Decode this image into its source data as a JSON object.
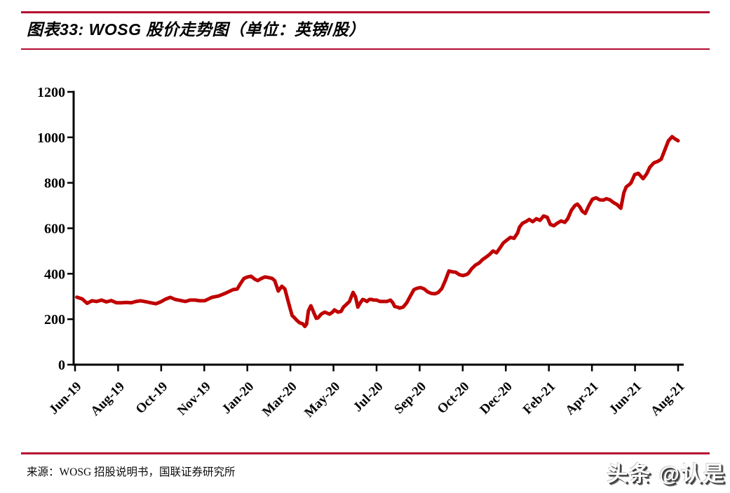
{
  "header": {
    "title": "图表33: WOSG 股价走势图（单位：英镑/股）"
  },
  "footer": {
    "source": "来源：WOSG 招股说明书，国联证券研究所",
    "watermark": "头条 @认是"
  },
  "colors": {
    "rule": "#B50B30",
    "line": "#C00000",
    "axis": "#000000",
    "background": "#FFFFFF"
  },
  "chart_data": {
    "type": "line",
    "title": "WOSG 股价走势图",
    "unit": "英镑/股",
    "xlabel": "",
    "ylabel": "",
    "ylim": [
      0,
      1200
    ],
    "y_ticks": [
      0,
      200,
      400,
      600,
      800,
      1000,
      1200
    ],
    "x_tick_labels": [
      "Jun-19",
      "Aug-19",
      "Oct-19",
      "Nov-19",
      "Jan-20",
      "Mar-20",
      "May-20",
      "Jul-20",
      "Sep-20",
      "Oct-20",
      "Dec-20",
      "Feb-21",
      "Apr-21",
      "Jun-21",
      "Aug-21"
    ],
    "grid": false,
    "legend": "none",
    "point_format": "[fraction_of_x_axis_from_Jun19_to_Aug21, price_in_pence]",
    "series": [
      {
        "name": "WOSG 股价",
        "color": "#C00000",
        "points": [
          [
            0.003,
            297
          ],
          [
            0.012,
            289
          ],
          [
            0.02,
            270
          ],
          [
            0.028,
            281
          ],
          [
            0.036,
            278
          ],
          [
            0.044,
            284
          ],
          [
            0.052,
            276
          ],
          [
            0.06,
            282
          ],
          [
            0.069,
            272
          ],
          [
            0.077,
            272
          ],
          [
            0.085,
            274
          ],
          [
            0.093,
            272
          ],
          [
            0.101,
            278
          ],
          [
            0.109,
            281
          ],
          [
            0.117,
            277
          ],
          [
            0.126,
            272
          ],
          [
            0.134,
            268
          ],
          [
            0.142,
            276
          ],
          [
            0.15,
            288
          ],
          [
            0.158,
            296
          ],
          [
            0.166,
            287
          ],
          [
            0.174,
            283
          ],
          [
            0.183,
            278
          ],
          [
            0.191,
            284
          ],
          [
            0.199,
            284
          ],
          [
            0.207,
            281
          ],
          [
            0.215,
            281
          ],
          [
            0.227,
            296
          ],
          [
            0.238,
            302
          ],
          [
            0.25,
            315
          ],
          [
            0.262,
            330
          ],
          [
            0.269,
            333
          ],
          [
            0.274,
            355
          ],
          [
            0.28,
            379
          ],
          [
            0.286,
            386
          ],
          [
            0.292,
            389
          ],
          [
            0.298,
            376
          ],
          [
            0.303,
            370
          ],
          [
            0.309,
            379
          ],
          [
            0.315,
            386
          ],
          [
            0.321,
            383
          ],
          [
            0.327,
            379
          ],
          [
            0.331,
            370
          ],
          [
            0.337,
            324
          ],
          [
            0.343,
            345
          ],
          [
            0.348,
            333
          ],
          [
            0.352,
            293
          ],
          [
            0.356,
            253
          ],
          [
            0.36,
            216
          ],
          [
            0.364,
            206
          ],
          [
            0.367,
            197
          ],
          [
            0.372,
            185
          ],
          [
            0.378,
            179
          ],
          [
            0.381,
            168
          ],
          [
            0.384,
            179
          ],
          [
            0.387,
            237
          ],
          [
            0.391,
            259
          ],
          [
            0.393,
            247
          ],
          [
            0.397,
            222
          ],
          [
            0.4,
            204
          ],
          [
            0.403,
            206
          ],
          [
            0.408,
            222
          ],
          [
            0.414,
            231
          ],
          [
            0.417,
            228
          ],
          [
            0.422,
            222
          ],
          [
            0.427,
            231
          ],
          [
            0.43,
            241
          ],
          [
            0.436,
            231
          ],
          [
            0.441,
            234
          ],
          [
            0.445,
            253
          ],
          [
            0.45,
            265
          ],
          [
            0.455,
            278
          ],
          [
            0.458,
            298
          ],
          [
            0.461,
            318
          ],
          [
            0.465,
            299
          ],
          [
            0.469,
            253
          ],
          [
            0.472,
            268
          ],
          [
            0.477,
            287
          ],
          [
            0.48,
            284
          ],
          [
            0.484,
            278
          ],
          [
            0.488,
            287
          ],
          [
            0.492,
            287
          ],
          [
            0.495,
            284
          ],
          [
            0.5,
            284
          ],
          [
            0.506,
            278
          ],
          [
            0.512,
            278
          ],
          [
            0.517,
            278
          ],
          [
            0.523,
            284
          ],
          [
            0.527,
            272
          ],
          [
            0.53,
            256
          ],
          [
            0.535,
            253
          ],
          [
            0.538,
            249
          ],
          [
            0.544,
            253
          ],
          [
            0.55,
            272
          ],
          [
            0.556,
            302
          ],
          [
            0.562,
            330
          ],
          [
            0.567,
            336
          ],
          [
            0.573,
            339
          ],
          [
            0.579,
            333
          ],
          [
            0.585,
            320
          ],
          [
            0.591,
            313
          ],
          [
            0.597,
            312
          ],
          [
            0.602,
            317
          ],
          [
            0.608,
            334
          ],
          [
            0.614,
            370
          ],
          [
            0.62,
            412
          ],
          [
            0.626,
            408
          ],
          [
            0.631,
            407
          ],
          [
            0.637,
            396
          ],
          [
            0.643,
            392
          ],
          [
            0.649,
            396
          ],
          [
            0.652,
            401
          ],
          [
            0.658,
            423
          ],
          [
            0.664,
            438
          ],
          [
            0.67,
            447
          ],
          [
            0.676,
            463
          ],
          [
            0.681,
            472
          ],
          [
            0.687,
            484
          ],
          [
            0.693,
            500
          ],
          [
            0.699,
            492
          ],
          [
            0.705,
            515
          ],
          [
            0.71,
            535
          ],
          [
            0.716,
            548
          ],
          [
            0.722,
            560
          ],
          [
            0.728,
            556
          ],
          [
            0.734,
            580
          ],
          [
            0.737,
            605
          ],
          [
            0.742,
            622
          ],
          [
            0.748,
            630
          ],
          [
            0.753,
            639
          ],
          [
            0.759,
            629
          ],
          [
            0.765,
            642
          ],
          [
            0.771,
            635
          ],
          [
            0.777,
            654
          ],
          [
            0.783,
            648
          ],
          [
            0.788,
            617
          ],
          [
            0.794,
            611
          ],
          [
            0.8,
            623
          ],
          [
            0.806,
            632
          ],
          [
            0.812,
            626
          ],
          [
            0.817,
            642
          ],
          [
            0.823,
            679
          ],
          [
            0.829,
            700
          ],
          [
            0.833,
            706
          ],
          [
            0.837,
            694
          ],
          [
            0.841,
            675
          ],
          [
            0.846,
            665
          ],
          [
            0.852,
            700
          ],
          [
            0.858,
            728
          ],
          [
            0.864,
            734
          ],
          [
            0.87,
            725
          ],
          [
            0.876,
            724
          ],
          [
            0.881,
            730
          ],
          [
            0.887,
            725
          ],
          [
            0.893,
            713
          ],
          [
            0.899,
            704
          ],
          [
            0.905,
            688
          ],
          [
            0.91,
            756
          ],
          [
            0.914,
            782
          ],
          [
            0.919,
            792
          ],
          [
            0.922,
            800
          ],
          [
            0.928,
            836
          ],
          [
            0.934,
            842
          ],
          [
            0.942,
            818
          ],
          [
            0.948,
            840
          ],
          [
            0.953,
            868
          ],
          [
            0.96,
            888
          ],
          [
            0.966,
            894
          ],
          [
            0.972,
            904
          ],
          [
            0.978,
            945
          ],
          [
            0.984,
            985
          ],
          [
            0.99,
            1003
          ],
          [
            0.995,
            993
          ],
          [
            1.0,
            985
          ]
        ]
      }
    ]
  }
}
